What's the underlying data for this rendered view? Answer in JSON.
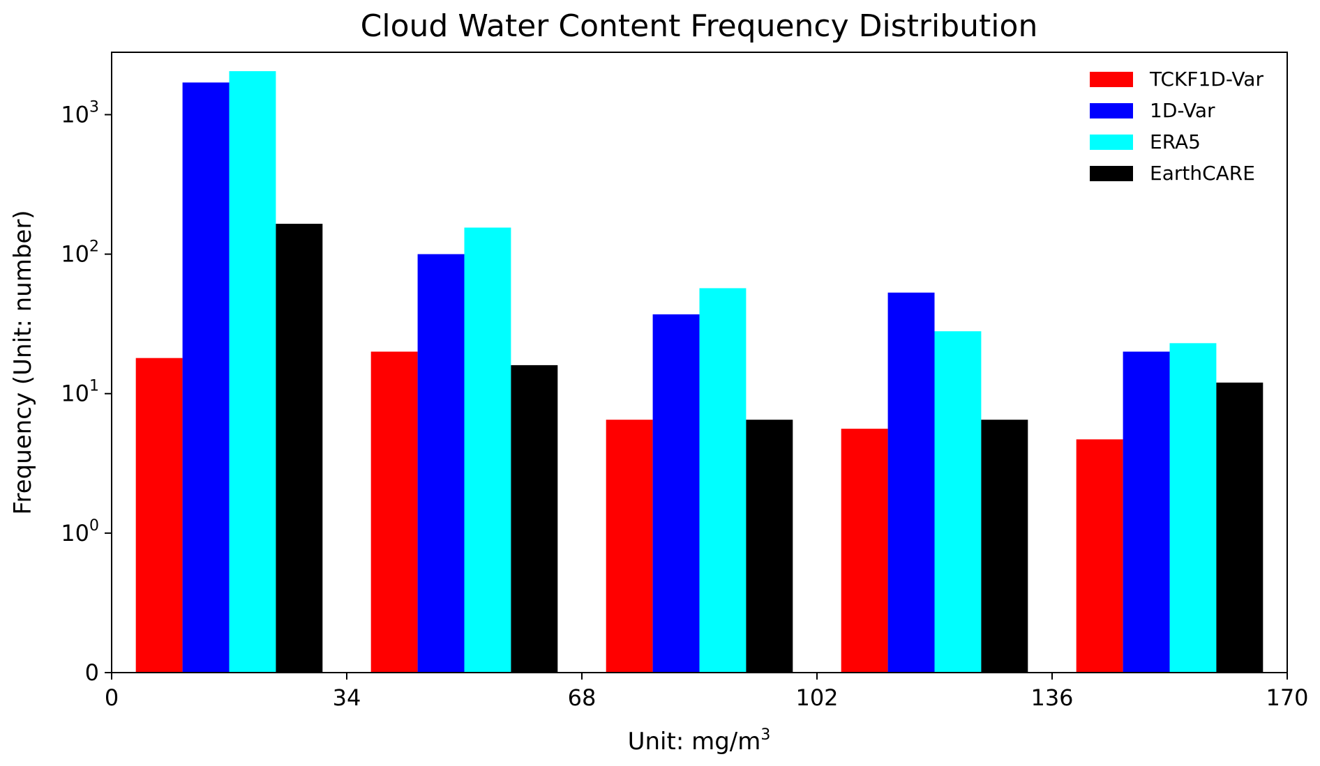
{
  "chart_data": {
    "type": "bar",
    "title": "Cloud Water Content Frequency Distribution",
    "xlabel": "Unit: mg/m",
    "xlabel_sup": "3",
    "ylabel": "Frequency (Unit: number)",
    "xlim": [
      0,
      170
    ],
    "x_ticks": [
      "0",
      "34",
      "68",
      "102",
      "136",
      "170"
    ],
    "y_scale": "symlog",
    "y_ticks": [
      {
        "value": 0,
        "base": "0",
        "exp": ""
      },
      {
        "value": 1,
        "base": "10",
        "exp": "0"
      },
      {
        "value": 10,
        "base": "10",
        "exp": "1"
      },
      {
        "value": 100,
        "base": "10",
        "exp": "2"
      },
      {
        "value": 1000,
        "base": "10",
        "exp": "3"
      }
    ],
    "ylim": [
      0,
      2800
    ],
    "group_centers": [
      17,
      51,
      85,
      119,
      153
    ],
    "series": [
      {
        "name": "TCKF1D-Var",
        "color": "#ff0000",
        "values": [
          18,
          20,
          6.5,
          5.6,
          4.7
        ]
      },
      {
        "name": "1D-Var",
        "color": "#0000ff",
        "values": [
          1700,
          100,
          37,
          53,
          20
        ]
      },
      {
        "name": "ERA5",
        "color": "#00ffff",
        "values": [
          2050,
          155,
          57,
          28,
          23
        ]
      },
      {
        "name": "EarthCARE",
        "color": "#000000",
        "values": [
          165,
          16,
          6.5,
          6.5,
          12
        ]
      }
    ],
    "legend_position": "top-right",
    "grid": false
  }
}
